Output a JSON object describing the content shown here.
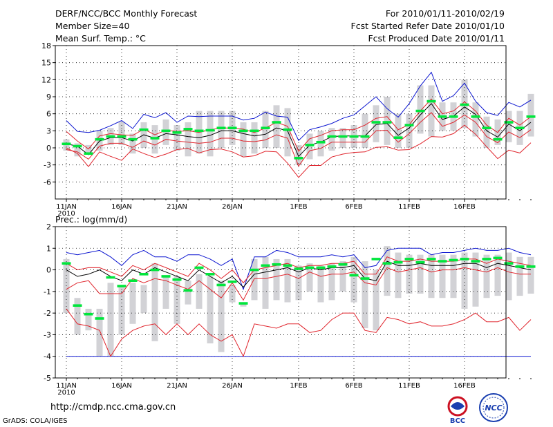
{
  "header": {
    "title": "DERF/NCC/BCC Monthly Forecast",
    "member_size": "Member Size=40",
    "variable1": "Mean Surf. Temp.: °C",
    "for_range": "For 2010/01/11-2010/02/19",
    "start_date": "Fcst Started Refer Date 2010/01/10",
    "produced_date": "Fcst Produced Date 2010/01/11"
  },
  "footer": {
    "url": "http://cmdp.ncc.cma.gov.cn",
    "credit": "GrADS: COLA/IGES",
    "logo_left": "BCC",
    "logo_right": "NCC"
  },
  "colors": {
    "box": "#d2d2d6",
    "median": "#00e63c",
    "mean": "#000000",
    "inner": "#e0242c",
    "outer": "#0a14d0"
  },
  "chart_data": [
    {
      "type": "box-plume",
      "title": "Mean Surf. Temp.: °C",
      "ylim": [
        -9,
        18
      ],
      "yticks": [
        -6,
        -3,
        0,
        3,
        6,
        9,
        12,
        15,
        18
      ],
      "xticks": [
        {
          "day": 1,
          "label": "11JAN",
          "sub": "2010"
        },
        {
          "day": 6,
          "label": "16JAN"
        },
        {
          "day": 11,
          "label": "21JAN"
        },
        {
          "day": 16,
          "label": "26JAN"
        },
        {
          "day": 22,
          "label": "1FEB"
        },
        {
          "day": 27,
          "label": "6FEB"
        },
        {
          "day": 32,
          "label": "11FEB"
        },
        {
          "day": 37,
          "label": "16FEB"
        }
      ],
      "series": {
        "mean": [
          0.7,
          0.3,
          -1.2,
          1.2,
          1.8,
          1.8,
          1.2,
          2.3,
          1.7,
          2.5,
          2.3,
          2.0,
          1.8,
          2.2,
          3.0,
          3.0,
          2.5,
          2.1,
          2.4,
          3.5,
          3.0,
          -1.5,
          0.5,
          1.0,
          2.0,
          2.1,
          2.1,
          2.1,
          4.1,
          4.3,
          2.2,
          3.5,
          5.8,
          7.8,
          5.0,
          5.6,
          7.2,
          5.9,
          3.0,
          1.9,
          4.2,
          3.0,
          4.5
        ],
        "inner_upper": [
          2.9,
          1.2,
          -0.2,
          2.1,
          2.5,
          2.3,
          2.2,
          3.3,
          2.3,
          3.1,
          2.9,
          3.0,
          2.7,
          3.2,
          3.5,
          3.5,
          3.3,
          2.7,
          3.5,
          4.5,
          3.8,
          -0.6,
          1.6,
          2.2,
          3.0,
          3.2,
          3.2,
          4.0,
          5.2,
          5.5,
          3.2,
          4.1,
          6.5,
          8.6,
          6.0,
          6.5,
          8.1,
          6.5,
          4.0,
          2.7,
          5.2,
          4.0,
          5.5
        ],
        "inner_lower": [
          -0.3,
          -0.7,
          -2.0,
          0.3,
          0.8,
          0.8,
          0.1,
          1.2,
          0.5,
          1.5,
          1.2,
          1.0,
          0.8,
          1.0,
          1.7,
          1.7,
          1.2,
          1.1,
          1.4,
          2.3,
          1.7,
          -3.2,
          -0.5,
          -0.1,
          1.0,
          1.0,
          1.0,
          1.0,
          3.0,
          3.1,
          1.0,
          2.5,
          4.5,
          6.2,
          3.8,
          4.5,
          5.8,
          4.5,
          2.0,
          0.9,
          2.8,
          1.8,
          3.2
        ],
        "outer_upper": [
          4.8,
          2.9,
          2.7,
          3.1,
          3.9,
          4.8,
          3.4,
          5.9,
          5.3,
          6.2,
          4.5,
          5.6,
          5.5,
          5.6,
          5.6,
          5.6,
          4.9,
          5.2,
          6.3,
          5.6,
          5.4,
          1.3,
          3.2,
          3.7,
          4.3,
          5.2,
          5.8,
          7.4,
          9.0,
          6.9,
          5.4,
          7.8,
          10.9,
          13.3,
          8.2,
          9.2,
          11.4,
          8.2,
          6.2,
          5.7,
          8.0,
          7.2,
          8.4
        ],
        "outer_lower": [
          0.0,
          -1.0,
          -3.3,
          -0.7,
          -1.5,
          -2.2,
          -0.2,
          -1.0,
          -1.7,
          -1.1,
          -0.3,
          -0.1,
          -0.9,
          -0.3,
          -0.2,
          -0.7,
          -1.6,
          -1.4,
          -0.6,
          -0.7,
          -2.7,
          -5.2,
          -3.1,
          -3.1,
          -1.6,
          -1.1,
          -0.8,
          -0.7,
          0.1,
          0.2,
          -0.4,
          -0.3,
          0.7,
          2.0,
          1.9,
          2.5,
          4.0,
          2.4,
          0.2,
          -1.9,
          -0.4,
          -0.9,
          0.9
        ],
        "box_top": [
          1.5,
          0.8,
          0.5,
          3.0,
          3.5,
          4.5,
          2.5,
          4.5,
          4.0,
          5.0,
          4.0,
          4.5,
          6.5,
          6.5,
          6.5,
          6.5,
          4.5,
          4.5,
          6.5,
          7.5,
          7.0,
          0.5,
          2.5,
          3.0,
          3.5,
          3.5,
          4.0,
          6.0,
          7.5,
          9.0,
          6.0,
          6.0,
          11.0,
          11.0,
          8.0,
          8.0,
          12.0,
          8.0,
          5.5,
          5.0,
          6.5,
          6.5,
          9.5
        ],
        "box_bottom": [
          -0.5,
          -1.5,
          -1.0,
          -0.5,
          0.5,
          0.5,
          -1.0,
          0.0,
          -1.0,
          0.5,
          -0.5,
          -1.5,
          -1.0,
          -1.5,
          0.0,
          0.5,
          -1.5,
          -1.0,
          0.0,
          0.0,
          -1.5,
          -3.0,
          -2.0,
          -1.5,
          -0.5,
          0.0,
          0.0,
          0.0,
          1.0,
          0.5,
          0.0,
          0.0,
          2.5,
          2.0,
          3.0,
          3.0,
          3.5,
          2.0,
          0.0,
          0.5,
          1.0,
          0.5,
          2.0
        ],
        "median": [
          0.7,
          0.3,
          -1.0,
          1.5,
          2.0,
          2.0,
          1.5,
          3.2,
          1.7,
          3.0,
          2.7,
          3.3,
          3.0,
          3.1,
          3.5,
          3.5,
          3.0,
          3.0,
          3.5,
          4.5,
          3.2,
          -1.8,
          0.5,
          1.0,
          2.0,
          2.0,
          2.0,
          2.0,
          4.5,
          4.5,
          1.8,
          4.0,
          6.5,
          8.2,
          5.5,
          5.5,
          7.6,
          5.5,
          3.5,
          1.5,
          4.5,
          3.5,
          5.5
        ]
      }
    },
    {
      "type": "box-plume",
      "title": "Prec.: log(mm/d)",
      "ylim": [
        -5,
        2
      ],
      "yticks": [
        -5,
        -4,
        -3,
        -2,
        -1,
        0,
        1,
        2
      ],
      "xticks": [
        {
          "day": 1,
          "label": "11JAN",
          "sub": "2010"
        },
        {
          "day": 6,
          "label": "16JAN"
        },
        {
          "day": 11,
          "label": "21JAN"
        },
        {
          "day": 16,
          "label": "26JAN"
        },
        {
          "day": 22,
          "label": "1FEB"
        },
        {
          "day": 27,
          "label": "6FEB"
        },
        {
          "day": 32,
          "label": "11FEB"
        },
        {
          "day": 37,
          "label": "16FEB"
        }
      ],
      "series": {
        "mean": [
          0.0,
          -0.3,
          -0.2,
          0.0,
          -0.3,
          -0.5,
          0.0,
          -0.2,
          0.1,
          -0.1,
          -0.3,
          -0.5,
          0.0,
          -0.3,
          -0.6,
          -0.3,
          -0.8,
          -0.2,
          -0.1,
          0.0,
          0.1,
          -0.1,
          0.1,
          0.0,
          0.1,
          0.1,
          0.2,
          -0.4,
          -0.5,
          0.4,
          0.2,
          0.2,
          0.3,
          0.2,
          0.2,
          0.2,
          0.3,
          0.3,
          0.1,
          0.3,
          0.2,
          0.1,
          0.0
        ],
        "inner_upper": [
          0.3,
          0.0,
          0.1,
          0.1,
          -0.1,
          -0.3,
          0.2,
          0.0,
          0.3,
          0.1,
          -0.1,
          -0.3,
          0.3,
          0.0,
          -0.4,
          0.0,
          -0.6,
          0.0,
          0.1,
          0.2,
          0.3,
          0.1,
          0.2,
          0.2,
          0.3,
          0.3,
          0.4,
          -0.2,
          -0.2,
          0.6,
          0.4,
          0.4,
          0.5,
          0.4,
          0.4,
          0.4,
          0.5,
          0.5,
          0.3,
          0.5,
          0.4,
          0.3,
          0.2
        ],
        "inner_lower": [
          -0.9,
          -0.6,
          -0.5,
          -1.1,
          -1.1,
          -1.1,
          -0.4,
          -0.6,
          -0.4,
          -0.5,
          -0.7,
          -0.9,
          -0.5,
          -0.9,
          -1.3,
          -0.6,
          -1.4,
          -0.4,
          -0.4,
          -0.3,
          -0.2,
          -0.4,
          -0.1,
          -0.3,
          -0.2,
          -0.2,
          -0.1,
          -0.6,
          -0.7,
          0.1,
          -0.1,
          0.0,
          0.1,
          -0.1,
          0.0,
          0.0,
          0.1,
          0.0,
          -0.1,
          0.1,
          -0.1,
          -0.2,
          -0.2
        ],
        "outer_upper": [
          0.8,
          0.7,
          0.8,
          0.9,
          0.6,
          0.2,
          0.7,
          0.9,
          0.6,
          0.6,
          0.4,
          0.7,
          0.7,
          0.5,
          0.2,
          0.5,
          -0.9,
          0.6,
          0.6,
          0.9,
          0.8,
          0.6,
          0.6,
          0.6,
          0.7,
          0.6,
          0.7,
          0.1,
          0.2,
          0.9,
          1.0,
          1.0,
          1.0,
          0.7,
          0.8,
          0.8,
          0.9,
          1.0,
          0.9,
          0.9,
          1.0,
          0.8,
          0.7
        ],
        "outer_lower": [
          -1.8,
          -2.5,
          -2.6,
          -2.8,
          -4.0,
          -3.2,
          -2.8,
          -2.6,
          -2.5,
          -3.0,
          -2.5,
          -3.0,
          -2.5,
          -3.0,
          -3.3,
          -3.0,
          -4.0,
          -2.5,
          -2.6,
          -2.7,
          -2.5,
          -2.5,
          -2.9,
          -2.8,
          -2.3,
          -2.0,
          -2.0,
          -2.8,
          -2.9,
          -2.2,
          -2.3,
          -2.5,
          -2.4,
          -2.6,
          -2.6,
          -2.5,
          -2.3,
          -2.0,
          -2.4,
          -2.4,
          -2.2,
          -2.8,
          -2.3
        ],
        "box_top": [
          0.5,
          -1.3,
          -1.8,
          -1.8,
          -0.6,
          -0.8,
          -0.6,
          -0.7,
          0.3,
          -0.3,
          -0.3,
          -0.5,
          -0.2,
          -0.3,
          -0.5,
          -0.7,
          -1.5,
          0.5,
          0.6,
          0.5,
          0.5,
          0.2,
          0.3,
          0.2,
          0.3,
          0.4,
          0.6,
          0.4,
          0.0,
          1.1,
          0.8,
          0.7,
          0.7,
          0.7,
          0.7,
          0.7,
          0.8,
          0.8,
          0.7,
          0.7,
          0.8,
          0.6,
          0.6
        ],
        "box_bottom": [
          -2.0,
          -3.0,
          -2.8,
          -4.0,
          -4.0,
          -3.0,
          -2.5,
          -2.0,
          -3.3,
          -1.8,
          -2.5,
          -1.6,
          -1.8,
          -3.4,
          -3.8,
          -1.5,
          -1.7,
          -1.4,
          -1.8,
          -1.4,
          -1.5,
          -1.4,
          -1.0,
          -1.5,
          -1.4,
          -1.0,
          -1.5,
          -2.7,
          -2.8,
          -1.2,
          -1.3,
          -1.1,
          -1.1,
          -1.3,
          -1.3,
          -1.3,
          -1.8,
          -1.7,
          -1.3,
          -1.2,
          -1.4,
          -1.2,
          -1.1
        ],
        "median": [
          0.3,
          -1.65,
          -2.05,
          -2.25,
          -0.35,
          -0.75,
          -0.5,
          -0.2,
          0.0,
          -0.3,
          -0.45,
          -0.95,
          0.1,
          -0.2,
          -0.7,
          -0.55,
          -1.55,
          0.0,
          0.2,
          0.25,
          0.2,
          0.05,
          0.1,
          0.1,
          0.15,
          0.25,
          -0.25,
          -0.4,
          0.5,
          0.3,
          0.35,
          0.5,
          0.35,
          0.5,
          0.4,
          0.45,
          0.5,
          0.4,
          0.5,
          0.55,
          0.3,
          0.15,
          0.15
        ]
      },
      "floor": -4.0
    }
  ]
}
